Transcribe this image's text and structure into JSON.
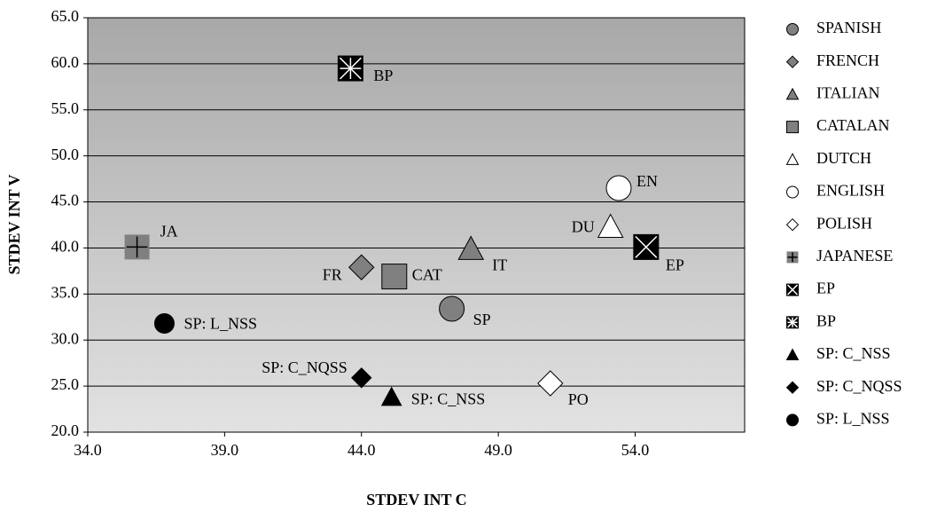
{
  "chart_data": {
    "type": "scatter",
    "xlabel": "STDEV INT C",
    "ylabel": "STDEV INT V",
    "xlim": [
      34,
      58
    ],
    "ylim": [
      20,
      65
    ],
    "xticks": [
      {
        "value": 34,
        "label": "34.0"
      },
      {
        "value": 39,
        "label": "39.0"
      },
      {
        "value": 44,
        "label": "44.0"
      },
      {
        "value": 49,
        "label": "49.0"
      },
      {
        "value": 54,
        "label": "54.0"
      }
    ],
    "yticks": [
      {
        "value": 20,
        "label": "20.0"
      },
      {
        "value": 25,
        "label": "25.0"
      },
      {
        "value": 30,
        "label": "30.0"
      },
      {
        "value": 35,
        "label": "35.0"
      },
      {
        "value": 40,
        "label": "40.0"
      },
      {
        "value": 45,
        "label": "45.0"
      },
      {
        "value": 50,
        "label": "50.0"
      },
      {
        "value": 55,
        "label": "55.0"
      },
      {
        "value": 60,
        "label": "60.0"
      },
      {
        "value": 65,
        "label": "65.0"
      }
    ],
    "grid": true,
    "legend": "right",
    "series": [
      {
        "name": "SPANISH",
        "label": "SP",
        "marker": "circle",
        "color": "#808080",
        "x": [
          47.3
        ],
        "y": [
          33.4
        ]
      },
      {
        "name": "FRENCH",
        "label": "FR",
        "marker": "diamond",
        "color": "#808080",
        "x": [
          44.0
        ],
        "y": [
          37.9
        ]
      },
      {
        "name": "ITALIAN",
        "label": "IT",
        "marker": "triangle",
        "color": "#808080",
        "x": [
          48.0
        ],
        "y": [
          39.9
        ]
      },
      {
        "name": "CATALAN",
        "label": "CAT",
        "marker": "square",
        "color": "#808080",
        "x": [
          45.2
        ],
        "y": [
          36.9
        ]
      },
      {
        "name": "DUTCH",
        "label": "DU",
        "marker": "triangle",
        "color": "#ffffff",
        "x": [
          53.1
        ],
        "y": [
          42.3
        ]
      },
      {
        "name": "ENGLISH",
        "label": "EN",
        "marker": "circle",
        "color": "#ffffff",
        "x": [
          53.4
        ],
        "y": [
          46.5
        ]
      },
      {
        "name": "POLISH",
        "label": "PO",
        "marker": "diamond",
        "color": "#ffffff",
        "x": [
          50.9
        ],
        "y": [
          25.3
        ]
      },
      {
        "name": "JAPANESE",
        "label": "JA",
        "marker": "cross-square",
        "color": "#808080",
        "x": [
          35.8
        ],
        "y": [
          40.1
        ]
      },
      {
        "name": "EP",
        "label": "EP",
        "marker": "x-square",
        "color": "#000000",
        "x": [
          54.4
        ],
        "y": [
          40.1
        ]
      },
      {
        "name": "BP",
        "label": "BP",
        "marker": "star-square",
        "color": "#000000",
        "x": [
          43.6
        ],
        "y": [
          59.5
        ]
      },
      {
        "name": "SP: C_NSS",
        "label": "SP: C_NSS",
        "marker": "triangle",
        "color": "#000000",
        "x": [
          45.1
        ],
        "y": [
          23.8
        ]
      },
      {
        "name": "SP: C_NQSS",
        "label": "SP: C_NQSS",
        "marker": "diamond",
        "color": "#000000",
        "x": [
          44.0
        ],
        "y": [
          25.9
        ]
      },
      {
        "name": "SP: L_NSS",
        "label": "SP: L_NSS",
        "marker": "circle",
        "color": "#000000",
        "x": [
          36.8
        ],
        "y": [
          31.8
        ]
      }
    ]
  }
}
